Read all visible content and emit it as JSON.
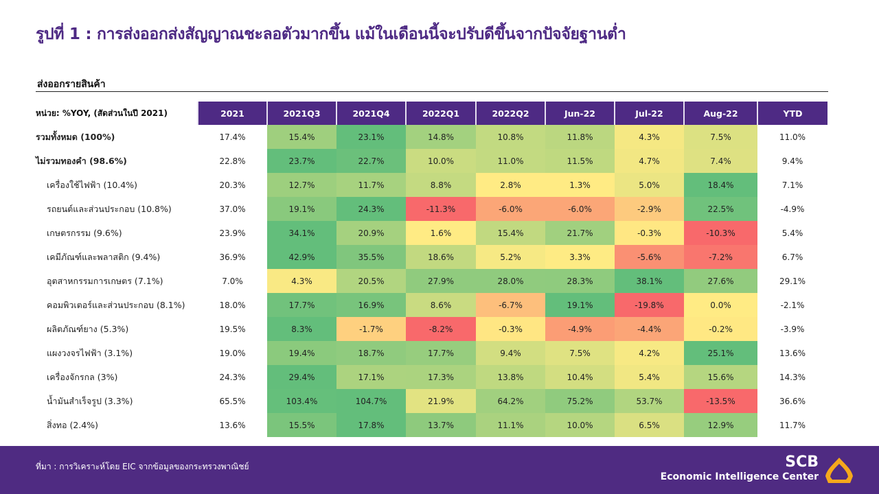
{
  "title": "รูปที่ 1 : การส่งออกส่งสัญญาณชะลอตัวมากขึ้น แม้ในเดือนนี้จะปรับดีขึ้นจากปัจจัยฐานต่ำ",
  "subtitle": "ส่งออกรายสินค้า",
  "footer": {
    "source": "ที่มา : การวิเคราะห์โดย EIC จากข้อมูลของกระทรวงพาณิชย์",
    "brand": "SCB",
    "brand_sub": "Economic Intelligence Center"
  },
  "colors": {
    "brand": "#4e2a84",
    "red": "#f8696b",
    "yellow": "#ffeb84",
    "green": "#63be7b",
    "logo": "#f5a81c"
  },
  "chart_data": {
    "type": "heatmap",
    "unit_label": "หน่วย: %YOY, (สัดส่วนในปี  2021)",
    "columns": [
      "2021",
      "2021Q3",
      "2021Q4",
      "2022Q1",
      "2022Q2",
      "Jun-22",
      "Jul-22",
      "Aug-22",
      "YTD"
    ],
    "heatmap_columns": [
      "2021Q3",
      "2021Q4",
      "2022Q1",
      "2022Q2",
      "Jun-22",
      "Jul-22",
      "Aug-22"
    ],
    "rows": [
      {
        "label": "รวมทั้งหมด  (100%)",
        "bold": true,
        "values": [
          "17.4%",
          "15.4%",
          "23.1%",
          "14.8%",
          "10.8%",
          "11.8%",
          "4.3%",
          "7.5%",
          "11.0%"
        ]
      },
      {
        "label": "ไม่รวมทองคำ  (98.6%)",
        "bold": true,
        "values": [
          "22.8%",
          "23.7%",
          "22.7%",
          "10.0%",
          "11.0%",
          "11.5%",
          "4.7%",
          "7.4%",
          "9.4%"
        ]
      },
      {
        "label": "เครื่องใช้ไฟฟ้า  (10.4%)",
        "values": [
          "20.3%",
          "12.7%",
          "11.7%",
          "8.8%",
          "2.8%",
          "1.3%",
          "5.0%",
          "18.4%",
          "7.1%"
        ]
      },
      {
        "label": "รถยนต์และส่วนประกอบ  (10.8%)",
        "values": [
          "37.0%",
          "19.1%",
          "24.3%",
          "-11.3%",
          "-6.0%",
          "-6.0%",
          "-2.9%",
          "22.5%",
          "-4.9%"
        ]
      },
      {
        "label": "เกษตรกรรม  (9.6%)",
        "values": [
          "23.9%",
          "34.1%",
          "20.9%",
          "1.6%",
          "15.4%",
          "21.7%",
          "-0.3%",
          "-10.3%",
          "5.4%"
        ]
      },
      {
        "label": "เคมีภัณฑ์และพลาสติก (9.4%)",
        "values": [
          "36.9%",
          "42.9%",
          "35.5%",
          "18.6%",
          "5.2%",
          "3.3%",
          "-5.6%",
          "-7.2%",
          "6.7%"
        ]
      },
      {
        "label": "อุตสาหกรรมการเกษตร  (7.1%)",
        "values": [
          "7.0%",
          "4.3%",
          "20.5%",
          "27.9%",
          "28.0%",
          "28.3%",
          "38.1%",
          "27.6%",
          "29.1%"
        ]
      },
      {
        "label": "คอมพิวเตอร์และส่วนประกอบ  (8.1%)",
        "values": [
          "18.0%",
          "17.7%",
          "16.9%",
          "8.6%",
          "-6.7%",
          "19.1%",
          "-19.8%",
          "0.0%",
          "-2.1%"
        ]
      },
      {
        "label": "ผลิตภัณฑ์ยาง (5.3%)",
        "values": [
          "19.5%",
          "8.3%",
          "-1.7%",
          "-8.2%",
          "-0.3%",
          "-4.9%",
          "-4.4%",
          "-0.2%",
          "-3.9%"
        ]
      },
      {
        "label": "แผงวงจรไฟฟ้า (3.1%)",
        "values": [
          "19.0%",
          "19.4%",
          "18.7%",
          "17.7%",
          "9.4%",
          "7.5%",
          "4.2%",
          "25.1%",
          "13.6%"
        ]
      },
      {
        "label": "เครื่องจักรกล  (3%)",
        "values": [
          "24.3%",
          "29.4%",
          "17.1%",
          "17.3%",
          "13.8%",
          "10.4%",
          "5.4%",
          "15.6%",
          "14.3%"
        ]
      },
      {
        "label": "น้ำมันสำเร็จรูป (3.3%)",
        "values": [
          "65.5%",
          "103.4%",
          "104.7%",
          "21.9%",
          "64.2%",
          "75.2%",
          "53.7%",
          "-13.5%",
          "36.6%"
        ]
      },
      {
        "label": "สิ่งทอ  (2.4%)",
        "values": [
          "13.6%",
          "15.5%",
          "17.8%",
          "13.7%",
          "11.1%",
          "10.0%",
          "6.5%",
          "12.9%",
          "11.7%"
        ]
      }
    ]
  }
}
